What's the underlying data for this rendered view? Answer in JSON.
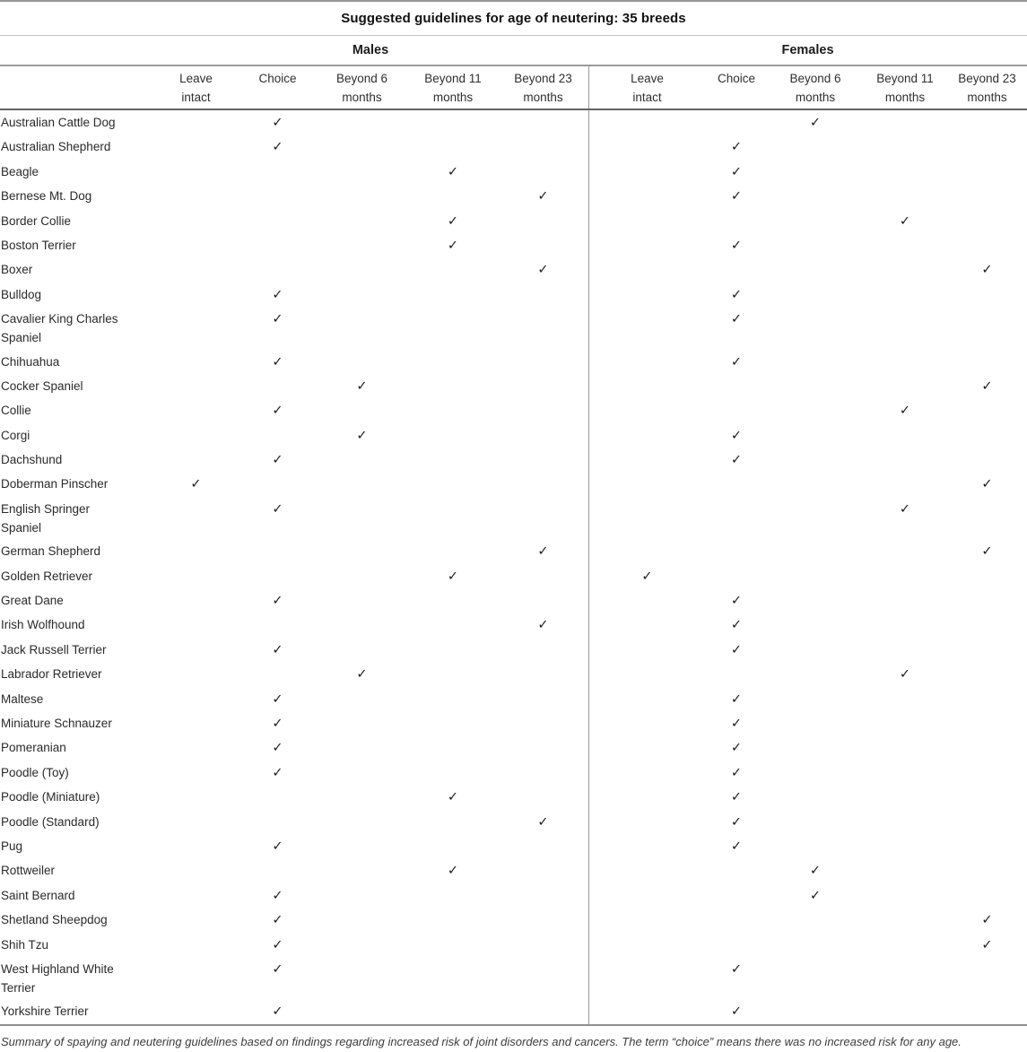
{
  "title": "Suggested guidelines for age of neutering: 35 breeds",
  "check_symbol": "✓",
  "sections": [
    {
      "label": "Males"
    },
    {
      "label": "Females"
    }
  ],
  "columns": [
    {
      "key": "leave_intact",
      "line1": "Leave",
      "line2": "intact"
    },
    {
      "key": "choice",
      "line1": "Choice",
      "line2": ""
    },
    {
      "key": "beyond6",
      "line1": "Beyond 6",
      "line2": "months"
    },
    {
      "key": "beyond11",
      "line1": "Beyond 11",
      "line2": "months"
    },
    {
      "key": "beyond23",
      "line1": "Beyond 23",
      "line2": "months"
    }
  ],
  "column_keys": [
    "leave_intact",
    "choice",
    "beyond6",
    "beyond11",
    "beyond23"
  ],
  "rows": [
    {
      "breed": "Australian Cattle Dog",
      "male": "choice",
      "female": "beyond6"
    },
    {
      "breed": "Australian Shepherd",
      "male": "choice",
      "female": "choice"
    },
    {
      "breed": "Beagle",
      "male": "beyond11",
      "female": "choice"
    },
    {
      "breed": "Bernese Mt. Dog",
      "male": "beyond23",
      "female": "choice"
    },
    {
      "breed": "Border Collie",
      "male": "beyond11",
      "female": "beyond11"
    },
    {
      "breed": "Boston Terrier",
      "male": "beyond11",
      "female": "choice"
    },
    {
      "breed": "Boxer",
      "male": "beyond23",
      "female": "beyond23"
    },
    {
      "breed": "Bulldog",
      "male": "choice",
      "female": "choice"
    },
    {
      "breed": "Cavalier King Charles Spaniel",
      "male": "choice",
      "female": "choice"
    },
    {
      "breed": "Chihuahua",
      "male": "choice",
      "female": "choice"
    },
    {
      "breed": "Cocker Spaniel",
      "male": "beyond6",
      "female": "beyond23"
    },
    {
      "breed": "Collie",
      "male": "choice",
      "female": "beyond11"
    },
    {
      "breed": "Corgi",
      "male": "beyond6",
      "female": "choice"
    },
    {
      "breed": "Dachshund",
      "male": "choice",
      "female": "choice"
    },
    {
      "breed": "Doberman Pinscher",
      "male": "leave_intact",
      "female": "beyond23"
    },
    {
      "breed": "English Springer Spaniel",
      "male": "choice",
      "female": "beyond11"
    },
    {
      "breed": "German Shepherd",
      "male": "beyond23",
      "female": "beyond23"
    },
    {
      "breed": "Golden Retriever",
      "male": "beyond11",
      "female": "leave_intact"
    },
    {
      "breed": "Great Dane",
      "male": "choice",
      "female": "choice"
    },
    {
      "breed": "Irish Wolfhound",
      "male": "beyond23",
      "female": "choice"
    },
    {
      "breed": "Jack Russell Terrier",
      "male": "choice",
      "female": "choice"
    },
    {
      "breed": "Labrador Retriever",
      "male": "beyond6",
      "female": "beyond11"
    },
    {
      "breed": "Maltese",
      "male": "choice",
      "female": "choice"
    },
    {
      "breed": "Miniature Schnauzer",
      "male": "choice",
      "female": "choice"
    },
    {
      "breed": "Pomeranian",
      "male": "choice",
      "female": "choice"
    },
    {
      "breed": "Poodle (Toy)",
      "male": "choice",
      "female": "choice"
    },
    {
      "breed": "Poodle (Miniature)",
      "male": "beyond11",
      "female": "choice"
    },
    {
      "breed": "Poodle (Standard)",
      "male": "beyond23",
      "female": "choice"
    },
    {
      "breed": "Pug",
      "male": "choice",
      "female": "choice"
    },
    {
      "breed": "Rottweiler",
      "male": "beyond11",
      "female": "beyond6"
    },
    {
      "breed": "Saint Bernard",
      "male": "choice",
      "female": "beyond6"
    },
    {
      "breed": "Shetland Sheepdog",
      "male": "choice",
      "female": "beyond23"
    },
    {
      "breed": "Shih Tzu",
      "male": "choice",
      "female": "beyond23"
    },
    {
      "breed": "West Highland White Terrier",
      "male": "choice",
      "female": "choice"
    },
    {
      "breed": "Yorkshire Terrier",
      "male": "choice",
      "female": "choice"
    }
  ],
  "footnote": "Summary of spaying and neutering guidelines based on findings regarding increased risk of joint disorders and cancers. The term “choice” means there was no increased risk for any age."
}
